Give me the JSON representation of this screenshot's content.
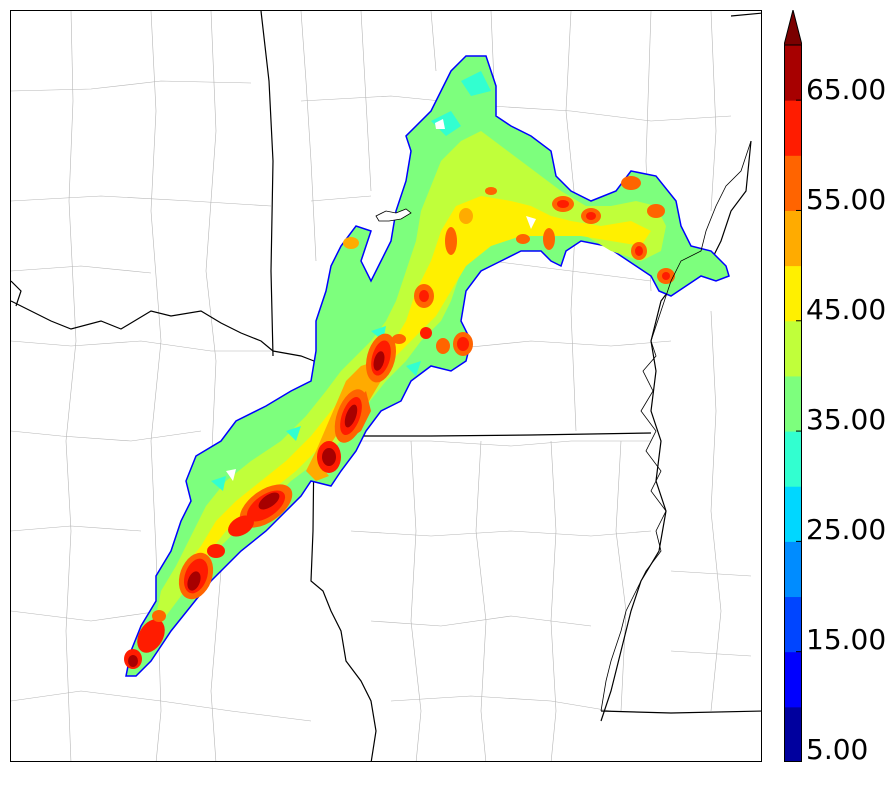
{
  "colorbar": {
    "tick_labels": [
      "5.00",
      "15.00",
      "25.00",
      "35.00",
      "45.00",
      "55.00",
      "65.00"
    ],
    "min": 5,
    "max": 70,
    "extend": "max",
    "levels": [
      5,
      10,
      15,
      20,
      25,
      30,
      35,
      40,
      45,
      50,
      55,
      60,
      65,
      70
    ],
    "colors": [
      "#00009e",
      "#0000ff",
      "#0045ff",
      "#008cff",
      "#00d7ff",
      "#32ffd0",
      "#7dff7d",
      "#c0ff3a",
      "#fff000",
      "#ffab00",
      "#ff6400",
      "#ff1c00",
      "#a70000",
      "#7a0000"
    ]
  },
  "map": {
    "field_colors": {
      "outline": "#0000ff",
      "low": "#32ffd0",
      "mid": "#7dff7d",
      "mid_high": "#c0ff3a",
      "high": "#fff000",
      "orange": "#ffab00",
      "red_orange": "#ff6400",
      "red": "#ff1c00",
      "dark_red": "#a70000"
    },
    "border_color": "#000000",
    "county_color": "#b5b5b5"
  }
}
